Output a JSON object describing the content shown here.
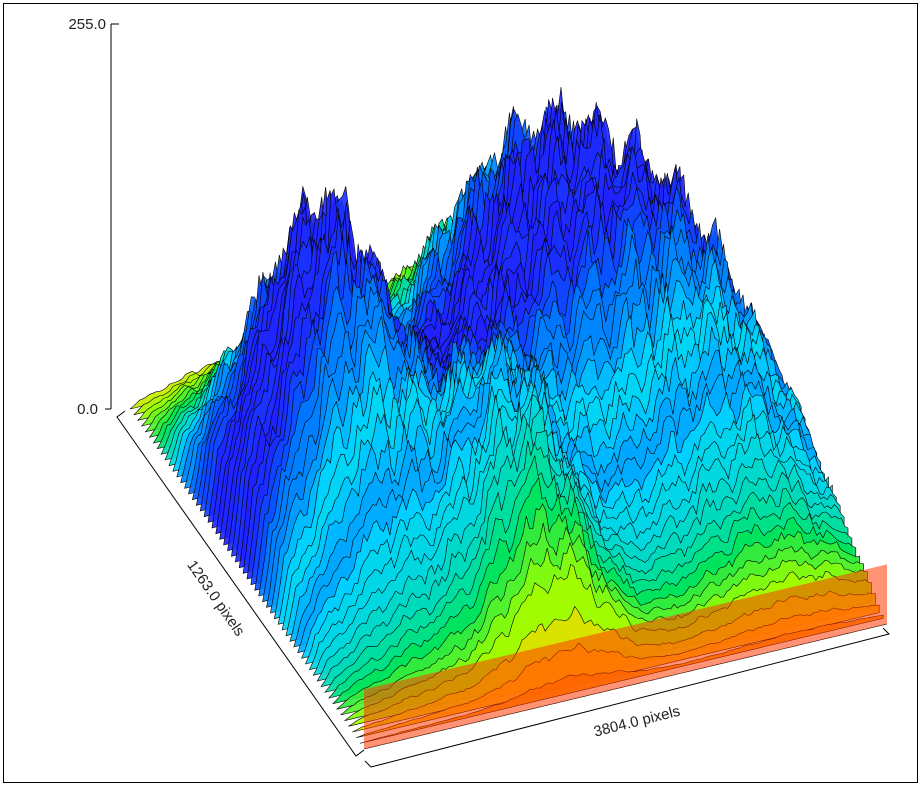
{
  "chart_data": {
    "type": "surface",
    "z_axis": {
      "range": [
        0.0,
        255.0
      ],
      "tick_labels": [
        "255.0",
        "0.0"
      ]
    },
    "depth_axis": {
      "label": "1263.0 pixels"
    },
    "width_axis": {
      "label": "3804.0 pixels"
    },
    "colormap": [
      "#ff0000",
      "#ff6a00",
      "#ffd200",
      "#9cff00",
      "#00e35a",
      "#00d4ff",
      "#0066ff",
      "#2a10ff",
      "#8a00e6"
    ],
    "edge_color": "#000000",
    "grid": false,
    "legend": "none"
  }
}
